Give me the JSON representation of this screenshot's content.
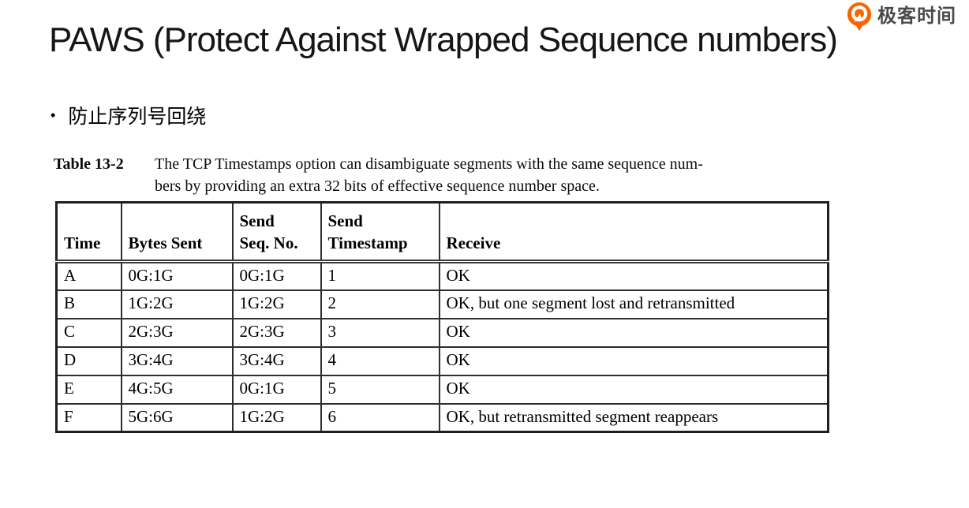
{
  "logo": {
    "text": "极客时间",
    "accent_color": "#F86400",
    "text_color": "#4A4A4A"
  },
  "title": "PAWS (Protect Against Wrapped Sequence numbers)",
  "bullet": {
    "marker": "•",
    "text": "防止序列号回绕"
  },
  "table": {
    "label": "Table 13-2",
    "caption_line1": "The TCP Timestamps option can disambiguate segments with the same sequence num-",
    "caption_line2": "bers by providing an extra 32 bits of effective sequence number space.",
    "headers": [
      "Time",
      "Bytes Sent",
      "Send\nSeq. No.",
      "Send\nTimestamp",
      "Receive"
    ],
    "rows": [
      [
        "A",
        "0G:1G",
        "0G:1G",
        "1",
        "OK"
      ],
      [
        "B",
        "1G:2G",
        "1G:2G",
        "2",
        "OK, but one segment lost and retransmitted"
      ],
      [
        "C",
        "2G:3G",
        "2G:3G",
        "3",
        "OK"
      ],
      [
        "D",
        "3G:4G",
        "3G:4G",
        "4",
        "OK"
      ],
      [
        "E",
        "4G:5G",
        "0G:1G",
        "5",
        "OK"
      ],
      [
        "F",
        "5G:6G",
        "1G:2G",
        "6",
        "OK, but retransmitted segment reappears"
      ]
    ]
  }
}
